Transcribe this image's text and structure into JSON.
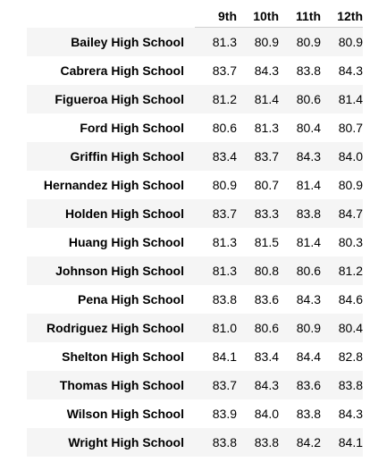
{
  "table": {
    "columns": [
      "9th",
      "10th",
      "11th",
      "12th"
    ],
    "rows": [
      {
        "school": "Bailey High School",
        "values": [
          "81.3",
          "80.9",
          "80.9",
          "80.9"
        ]
      },
      {
        "school": "Cabrera High School",
        "values": [
          "83.7",
          "84.3",
          "83.8",
          "84.3"
        ]
      },
      {
        "school": "Figueroa High School",
        "values": [
          "81.2",
          "81.4",
          "80.6",
          "81.4"
        ]
      },
      {
        "school": "Ford High School",
        "values": [
          "80.6",
          "81.3",
          "80.4",
          "80.7"
        ]
      },
      {
        "school": "Griffin High School",
        "values": [
          "83.4",
          "83.7",
          "84.3",
          "84.0"
        ]
      },
      {
        "school": "Hernandez High School",
        "values": [
          "80.9",
          "80.7",
          "81.4",
          "80.9"
        ]
      },
      {
        "school": "Holden High School",
        "values": [
          "83.7",
          "83.3",
          "83.8",
          "84.7"
        ]
      },
      {
        "school": "Huang High School",
        "values": [
          "81.3",
          "81.5",
          "81.4",
          "80.3"
        ]
      },
      {
        "school": "Johnson High School",
        "values": [
          "81.3",
          "80.8",
          "80.6",
          "81.2"
        ]
      },
      {
        "school": "Pena High School",
        "values": [
          "83.8",
          "83.6",
          "84.3",
          "84.6"
        ]
      },
      {
        "school": "Rodriguez High School",
        "values": [
          "81.0",
          "80.6",
          "80.9",
          "80.4"
        ]
      },
      {
        "school": "Shelton High School",
        "values": [
          "84.1",
          "83.4",
          "84.4",
          "82.8"
        ]
      },
      {
        "school": "Thomas High School",
        "values": [
          "83.7",
          "84.3",
          "83.6",
          "83.8"
        ]
      },
      {
        "school": "Wilson High School",
        "values": [
          "83.9",
          "84.0",
          "83.8",
          "84.3"
        ]
      },
      {
        "school": "Wright High School",
        "values": [
          "83.8",
          "83.8",
          "84.2",
          "84.1"
        ]
      }
    ]
  }
}
